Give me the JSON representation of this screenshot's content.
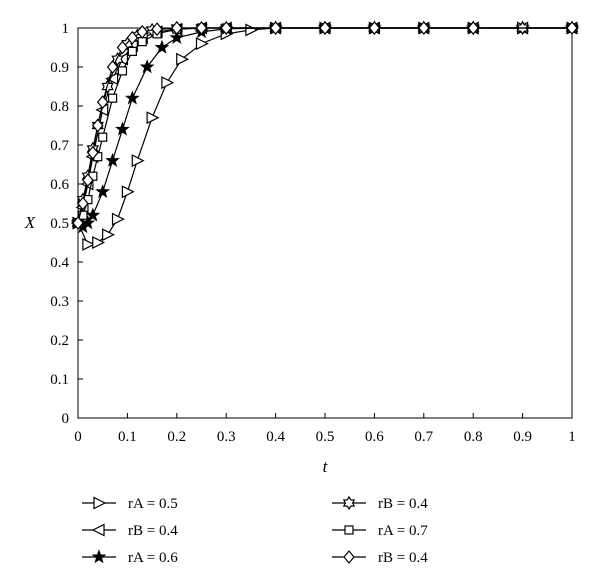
{
  "chart_data": {
    "type": "line",
    "xlabel": "t",
    "ylabel": "X",
    "xlim": [
      0,
      1
    ],
    "ylim": [
      0,
      1
    ],
    "xticks": [
      "0",
      "0.1",
      "0.2",
      "0.3",
      "0.4",
      "0.5",
      "0.6",
      "0.7",
      "0.8",
      "0.9",
      "1"
    ],
    "yticks": [
      "0",
      "0.1",
      "0.2",
      "0.3",
      "0.4",
      "0.5",
      "0.6",
      "0.7",
      "0.8",
      "0.9",
      "1"
    ],
    "grid": false,
    "legend_position": "bottom",
    "series": [
      {
        "name": "rA = 0.5",
        "marker": "triangle-right",
        "x": [
          0,
          0.02,
          0.04,
          0.06,
          0.08,
          0.1,
          0.12,
          0.15,
          0.18,
          0.21,
          0.25,
          0.3,
          0.35,
          0.4,
          0.5,
          0.6,
          0.7,
          0.8,
          0.9,
          1
        ],
        "y": [
          0.5,
          0.445,
          0.45,
          0.47,
          0.51,
          0.58,
          0.66,
          0.77,
          0.86,
          0.92,
          0.96,
          0.985,
          0.995,
          1,
          1,
          1,
          1,
          1,
          1,
          1
        ]
      },
      {
        "name": "rB = 0.4",
        "marker": "triangle-left",
        "x": [
          0,
          0.01,
          0.02,
          0.03,
          0.05,
          0.07,
          0.09,
          0.11,
          0.13,
          0.16,
          0.2,
          0.25,
          0.3,
          0.4,
          0.5,
          0.6,
          0.7,
          0.8,
          0.9,
          1
        ],
        "y": [
          0.5,
          0.54,
          0.6,
          0.67,
          0.79,
          0.87,
          0.92,
          0.955,
          0.975,
          0.99,
          0.997,
          1,
          1,
          1,
          1,
          1,
          1,
          1,
          1,
          1
        ]
      },
      {
        "name": "rA = 0.6",
        "marker": "star",
        "x": [
          0,
          0.01,
          0.02,
          0.03,
          0.05,
          0.07,
          0.09,
          0.11,
          0.14,
          0.17,
          0.2,
          0.25,
          0.3,
          0.4,
          0.5,
          0.6,
          0.7,
          0.8,
          0.9,
          1
        ],
        "y": [
          0.5,
          0.49,
          0.5,
          0.52,
          0.58,
          0.66,
          0.74,
          0.82,
          0.9,
          0.95,
          0.975,
          0.99,
          0.998,
          1,
          1,
          1,
          1,
          1,
          1,
          1
        ]
      },
      {
        "name": "rB = 0.4",
        "marker": "hexagram",
        "x": [
          0,
          0.01,
          0.02,
          0.03,
          0.04,
          0.06,
          0.08,
          0.1,
          0.12,
          0.15,
          0.2,
          0.25,
          0.3,
          0.4,
          0.5,
          0.6,
          0.7,
          0.8,
          0.9,
          1
        ],
        "y": [
          0.5,
          0.56,
          0.62,
          0.69,
          0.75,
          0.85,
          0.92,
          0.96,
          0.98,
          0.995,
          1,
          1,
          1,
          1,
          1,
          1,
          1,
          1,
          1,
          1
        ]
      },
      {
        "name": "rA = 0.7",
        "marker": "square",
        "x": [
          0,
          0.01,
          0.02,
          0.03,
          0.04,
          0.05,
          0.07,
          0.09,
          0.11,
          0.13,
          0.16,
          0.2,
          0.25,
          0.3,
          0.4,
          0.5,
          0.6,
          0.7,
          0.8,
          1
        ],
        "y": [
          0.5,
          0.52,
          0.56,
          0.62,
          0.67,
          0.72,
          0.82,
          0.89,
          0.94,
          0.965,
          0.985,
          0.997,
          1,
          1,
          1,
          1,
          1,
          1,
          1,
          1
        ]
      },
      {
        "name": "rB = 0.4",
        "marker": "diamond",
        "x": [
          0,
          0.01,
          0.02,
          0.03,
          0.04,
          0.05,
          0.07,
          0.09,
          0.11,
          0.13,
          0.16,
          0.2,
          0.25,
          0.3,
          0.4,
          0.5,
          0.6,
          0.7,
          0.8,
          1
        ],
        "y": [
          0.5,
          0.55,
          0.61,
          0.68,
          0.75,
          0.81,
          0.9,
          0.95,
          0.975,
          0.99,
          0.997,
          1,
          1,
          1,
          1,
          1,
          1,
          1,
          1,
          1
        ]
      }
    ]
  }
}
